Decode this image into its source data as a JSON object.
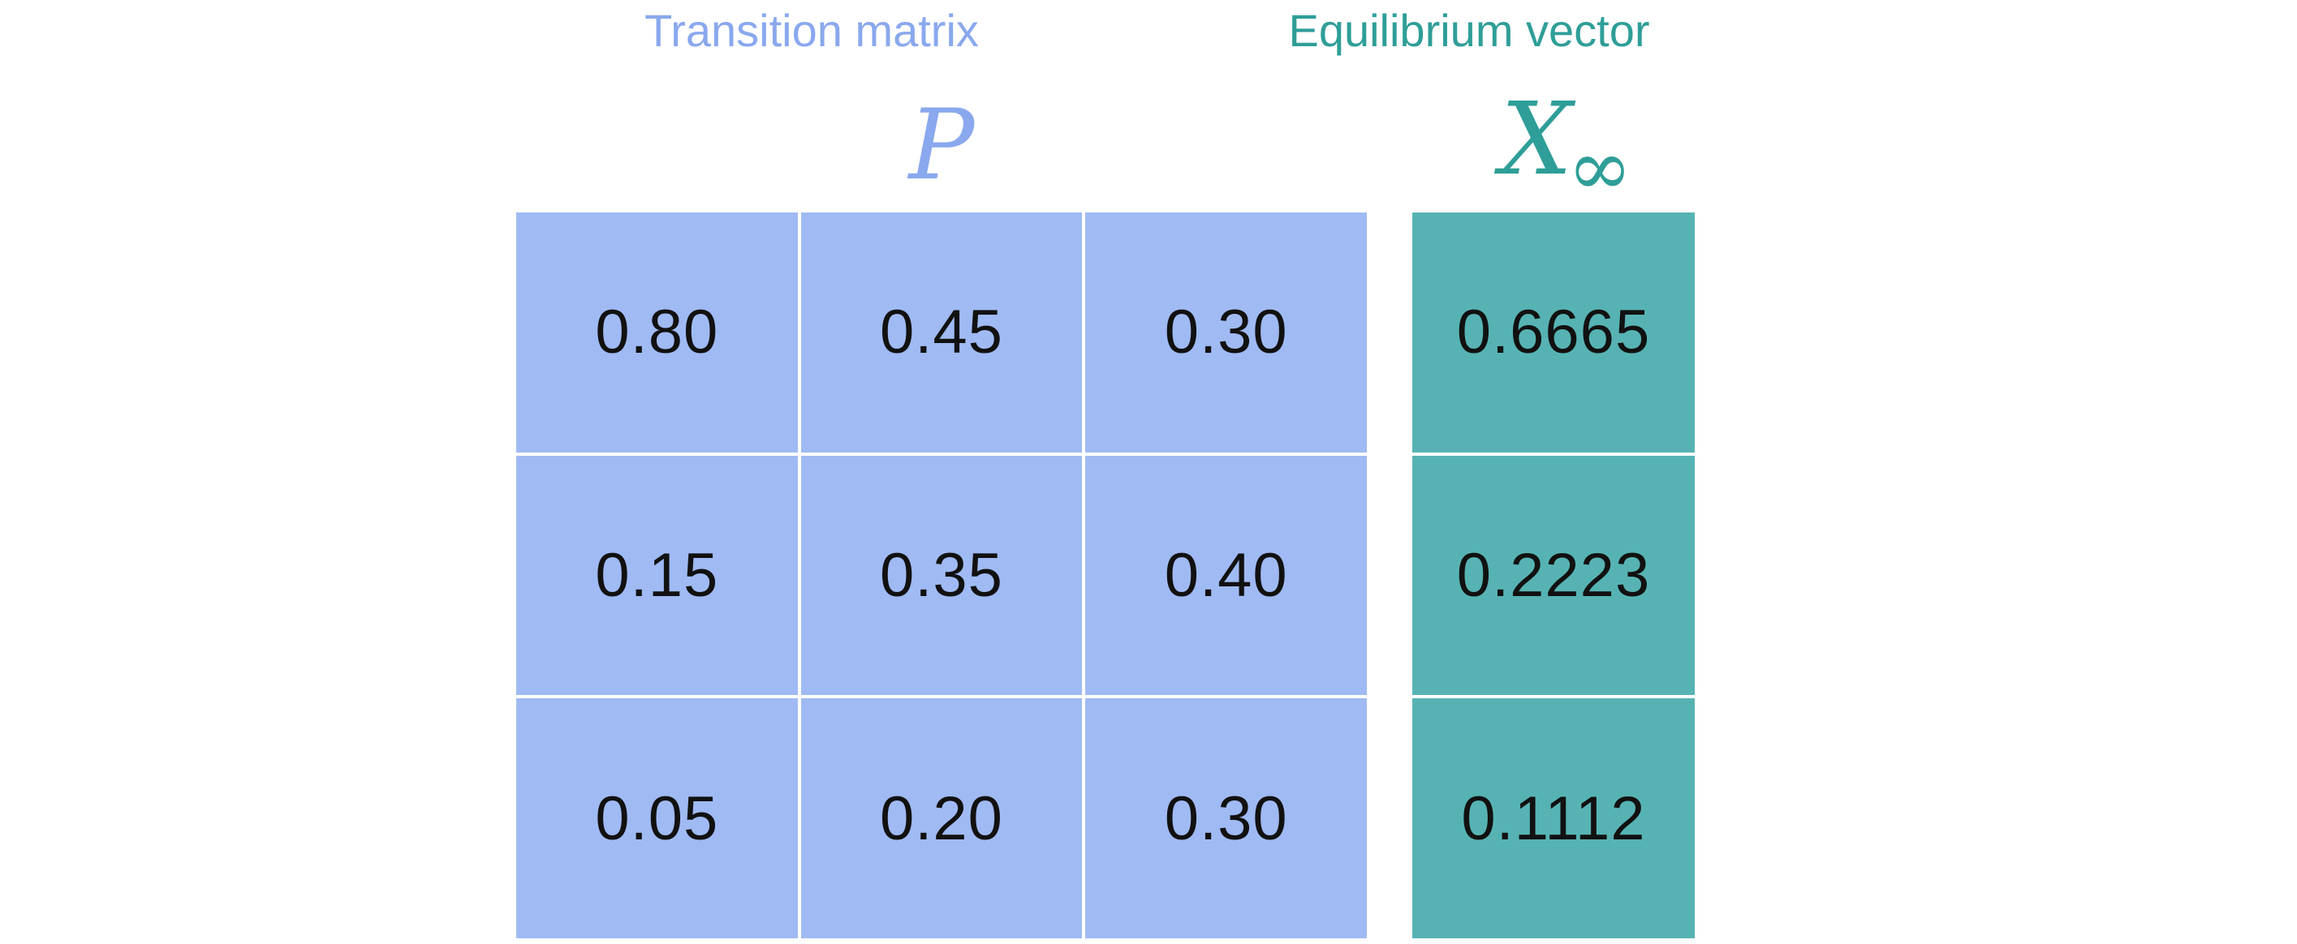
{
  "colors": {
    "matrix_accent": "#8aa8ee",
    "matrix_fill": "#a0baf3",
    "vector_accent": "#2f9e98",
    "vector_fill": "#57b3b3"
  },
  "matrix": {
    "caption": "Transition matrix",
    "symbol": "P",
    "rows": [
      [
        "0.80",
        "0.45",
        "0.30"
      ],
      [
        "0.15",
        "0.35",
        "0.40"
      ],
      [
        "0.05",
        "0.20",
        "0.30"
      ]
    ]
  },
  "vector": {
    "caption": "Equilibrium vector",
    "symbol": "X",
    "subscript": "∞",
    "values": [
      "0.6665",
      "0.2223",
      "0.1112"
    ]
  }
}
